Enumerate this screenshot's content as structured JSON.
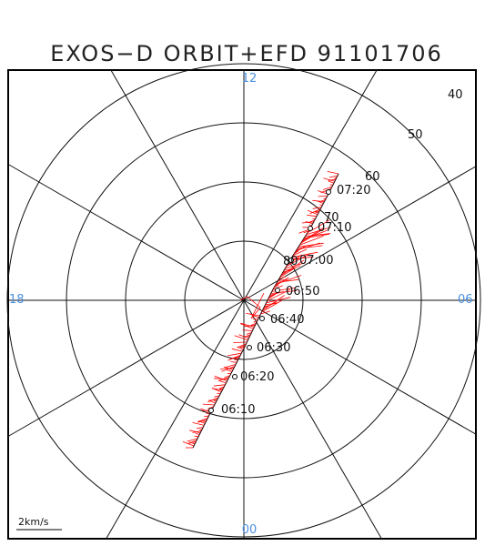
{
  "title": "EXOS−D ORBIT+EFD 91101706",
  "mlt_labels": {
    "top": "12",
    "bottom": "00",
    "left": "18",
    "right": "06"
  },
  "latitude_labels": [
    "40",
    "50",
    "60",
    "70",
    "80"
  ],
  "time_labels": [
    "07:20",
    "07:10",
    "07:00",
    "06:50",
    "06:40",
    "06:30",
    "06:20",
    "06:10"
  ],
  "scale_label": "2km/s",
  "colors": {
    "frame": "#000000",
    "grid": "#111111",
    "mlt_label": "#4a90e0",
    "orbit": "#ff0000"
  }
}
